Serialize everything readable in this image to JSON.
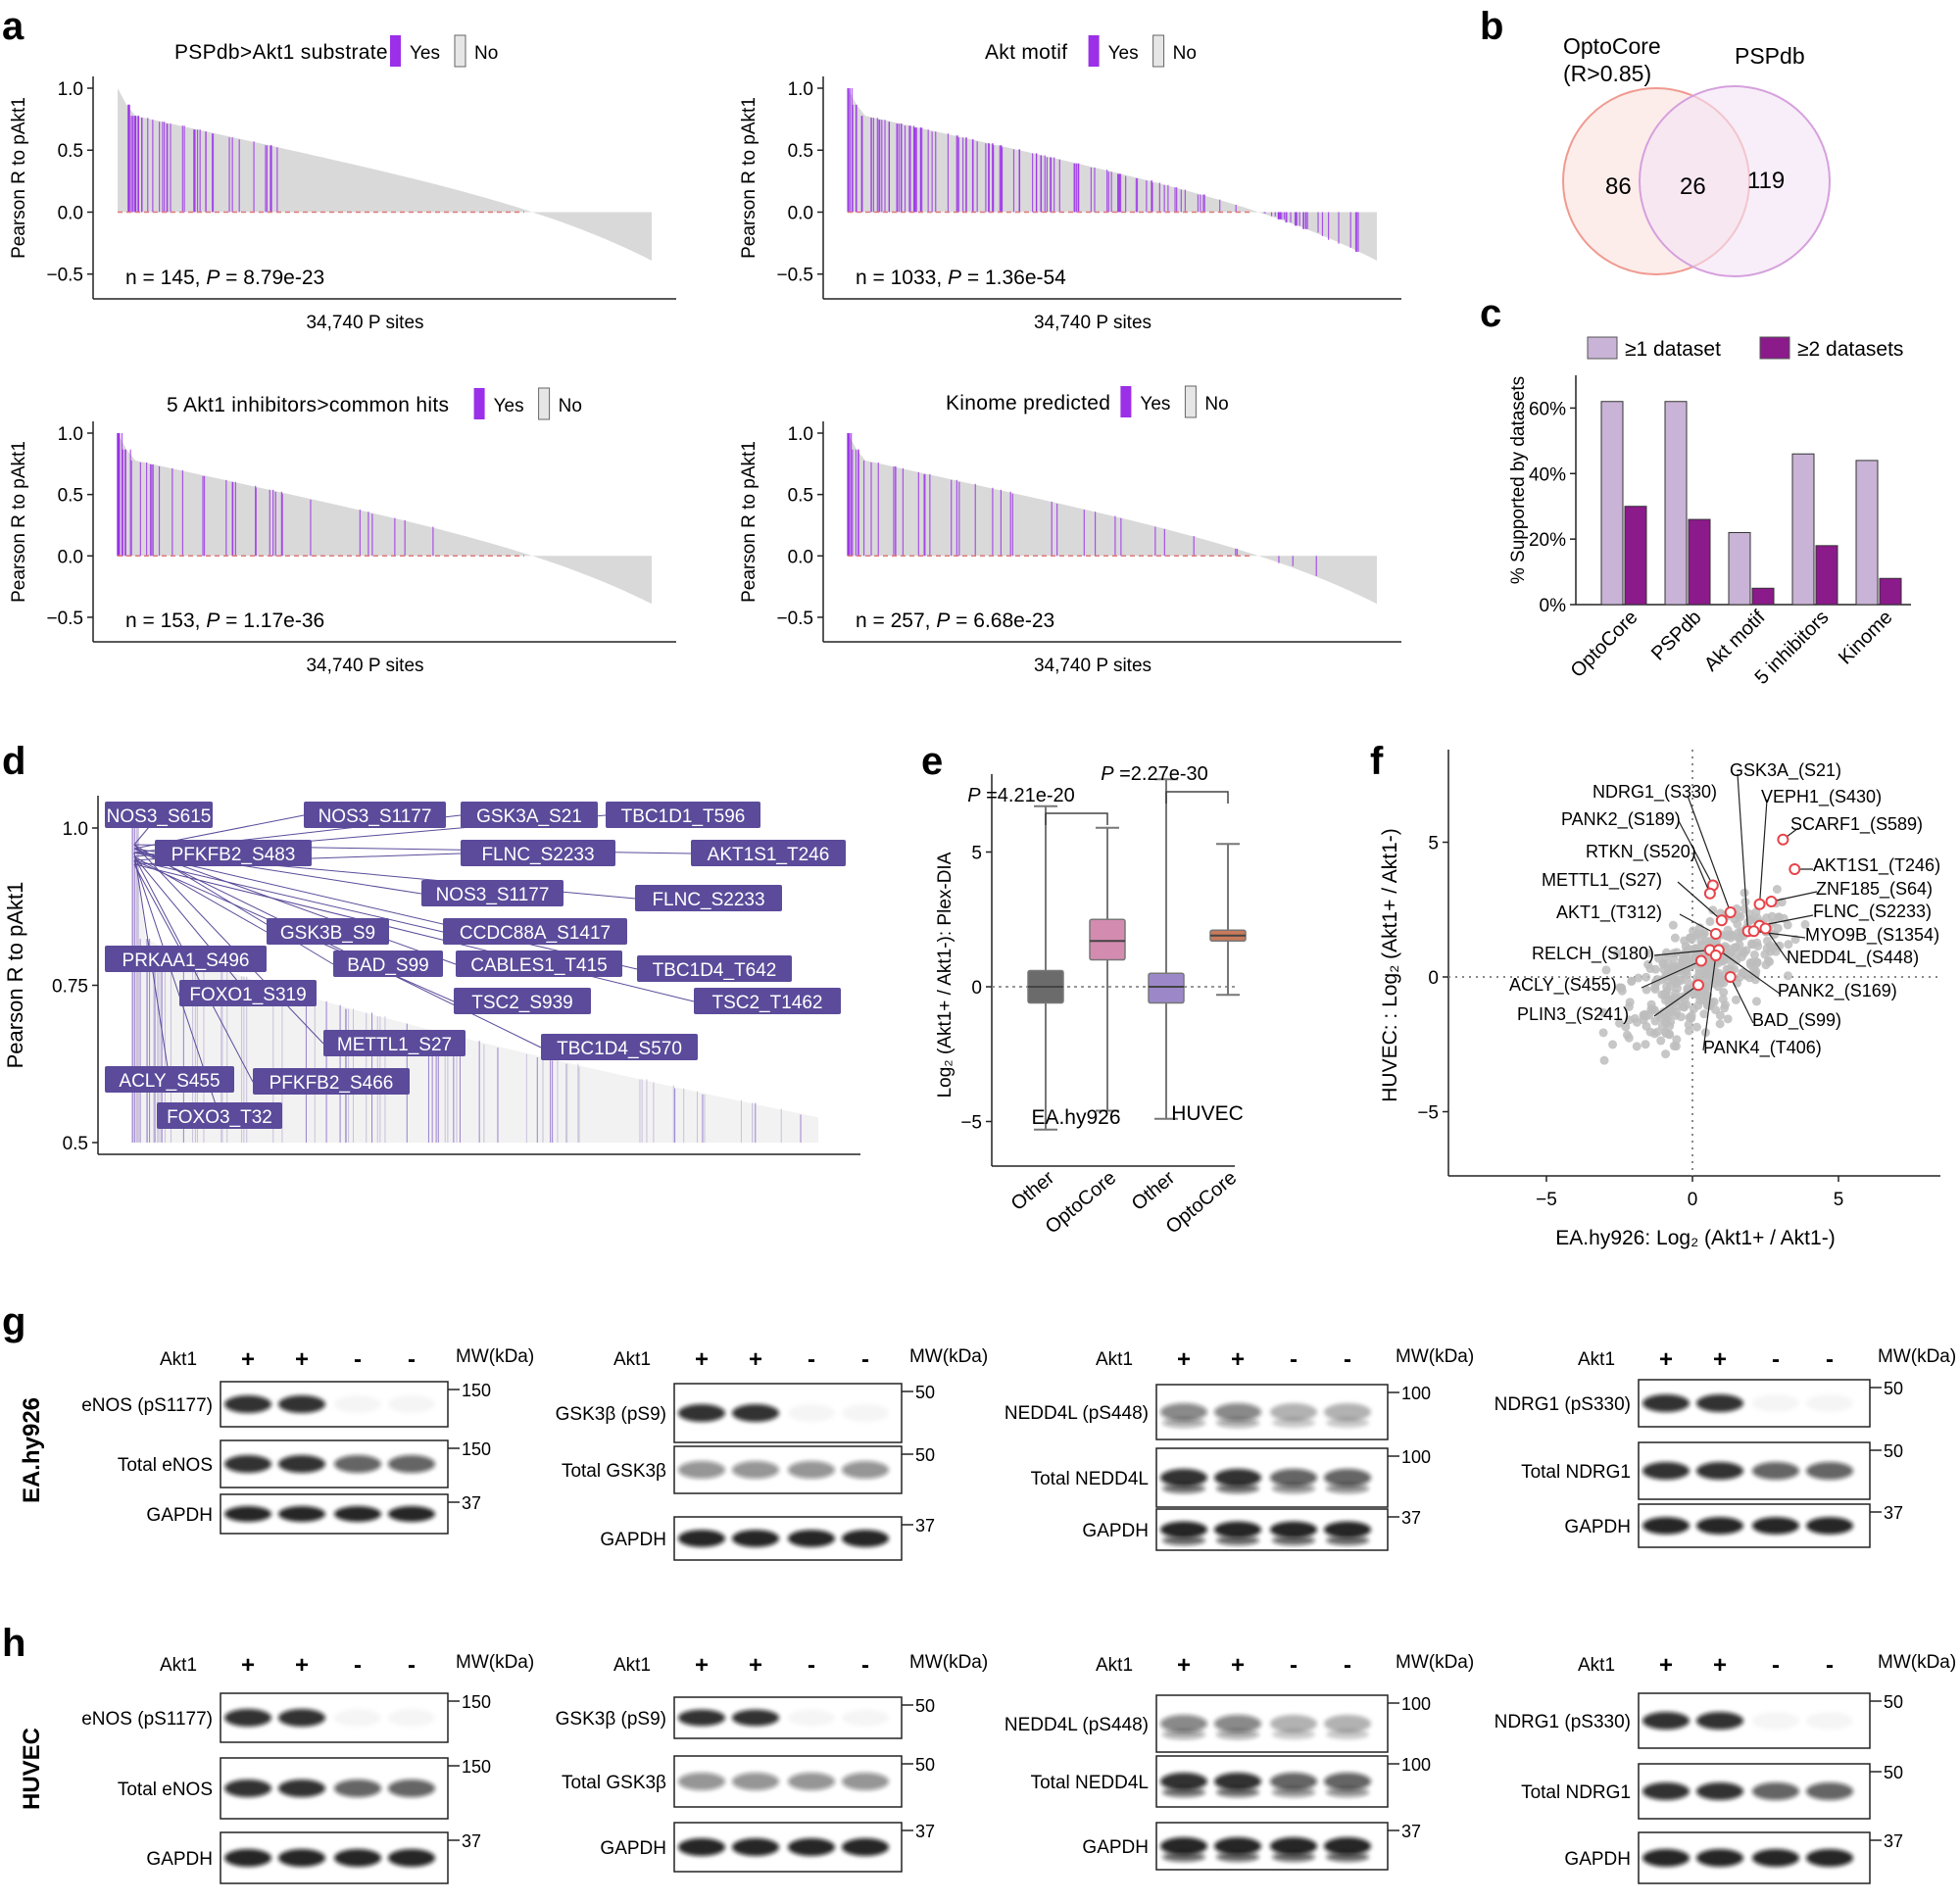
{
  "panel_letters": [
    "a",
    "b",
    "c",
    "d",
    "e",
    "f",
    "g",
    "h"
  ],
  "colors": {
    "yes": "#9b30e8",
    "no": "#d9d9d9",
    "ref_line": "#e07a7a",
    "opto": "#f08c8c",
    "pspdb": "#d49be0",
    "c_light": "#c9b3d6",
    "c_dark": "#8b1a8b",
    "label_box": "#5b4b9a",
    "box_other": "#6b6b6b",
    "box_opto_ea": "#d48bb0",
    "box_opto_huvec": "#c97a5a",
    "scatter_grey": "#bdbdbd",
    "scatter_red": "#e8434a"
  },
  "panel_a": {
    "charts": [
      {
        "title": "PSPdb>Akt1 substrate",
        "stat_n": "n = 145, ",
        "stat_p": " = 8.79e-23",
        "mark_fraction": [
          0.02,
          0.35
        ]
      },
      {
        "title": "Akt motif",
        "stat_n": "n = 1033, ",
        "stat_p": " = 1.36e-54",
        "mark_fraction": [
          0.0,
          0.97
        ]
      },
      {
        "title": "5 Akt1 inhibitors>common hits",
        "stat_n": "n = 153, ",
        "stat_p": " = 1.17e-36",
        "mark_fraction": [
          0.0,
          0.6
        ]
      },
      {
        "title": "Kinome predicted",
        "stat_n": "n = 257, ",
        "stat_p": " = 6.68e-23",
        "mark_fraction": [
          0.0,
          0.9
        ]
      }
    ],
    "ylabel": "Pearson R to pAkt1",
    "xlabel": "34,740 P sites",
    "legend_yes": "Yes",
    "legend_no": "No",
    "p_symbol": "P",
    "yticks": [
      "1.0",
      "0.5",
      "0.0",
      "−0.5"
    ]
  },
  "panel_b": {
    "label1": "OptoCore",
    "label1b": "(R>0.85)",
    "label2": "PSPdb",
    "only_opto": "86",
    "overlap": "26",
    "only_pspdb": "119"
  },
  "chart_data": [
    {
      "type": "bar",
      "title": "",
      "ylabel": "% Supported by datasets",
      "categories": [
        "OptoCore",
        "PSPdb",
        "Akt motif",
        "5 inhibitors",
        "Kinome"
      ],
      "series": [
        {
          "name": "≥1 dataset",
          "values": [
            62,
            62,
            22,
            46,
            44
          ]
        },
        {
          "name": "≥2 datasets",
          "values": [
            30,
            26,
            5,
            18,
            8
          ]
        }
      ],
      "ylim": [
        0,
        70
      ],
      "yticks": [
        "0%",
        "20%",
        "40%",
        "60%"
      ],
      "legend": "top"
    },
    {
      "type": "box",
      "ylabel": "Log₂ (Akt1+ / Akt1-): Plex-DIA",
      "categories": [
        "Other",
        "OptoCore",
        "Other",
        "OptoCore"
      ],
      "groups": [
        "EA.hy926",
        "HUVEC"
      ],
      "boxes": [
        {
          "min": -5.3,
          "q1": -0.6,
          "median": 0,
          "q3": 0.6,
          "max": 6.7
        },
        {
          "min": -4.6,
          "q1": 1.0,
          "median": 1.7,
          "q3": 2.5,
          "max": 5.9
        },
        {
          "min": -4.9,
          "q1": -0.6,
          "median": 0,
          "q3": 0.5,
          "max": 7.7
        },
        {
          "min": -0.3,
          "q1": 1.7,
          "median": 1.9,
          "q3": 2.1,
          "max": 5.3
        }
      ],
      "p_values": [
        "=4.21e-20",
        "=2.27e-30"
      ],
      "yticks": [
        "5",
        "0",
        "−5"
      ],
      "ylim": [
        -7,
        8
      ]
    },
    {
      "type": "scatter",
      "xlabel": "EA.hy926: Log₂ (Akt1+ / Akt1-)",
      "ylabel": "HUVEC: : Log₂ (Akt1+ / Akt1-)",
      "xlim": [
        -8.5,
        8.5
      ],
      "ylim": [
        -8.5,
        8.5
      ],
      "xticks": [
        "−5",
        "0",
        "5"
      ],
      "yticks": [
        "5",
        "0",
        "−5"
      ],
      "highlighted": [
        {
          "label": "GSK3A_(S21)",
          "x": 1.9,
          "y": 1.7
        },
        {
          "label": "NDRG1_(S330)",
          "x": 1.3,
          "y": 2.4
        },
        {
          "label": "VEPH1_(S430)",
          "x": 2.3,
          "y": 2.7
        },
        {
          "label": "PANK2_(S189)",
          "x": 0.7,
          "y": 3.4
        },
        {
          "label": "SCARF1_(S589)",
          "x": 3.1,
          "y": 5.1
        },
        {
          "label": "RTKN_(S520)",
          "x": 0.6,
          "y": 3.1
        },
        {
          "label": "AKT1S1_(T246)",
          "x": 3.5,
          "y": 4.0
        },
        {
          "label": "METTL1_(S27)",
          "x": 1.0,
          "y": 2.1
        },
        {
          "label": "ZNF185_(S64)",
          "x": 2.7,
          "y": 2.8
        },
        {
          "label": "AKT1_(T312)",
          "x": 0.8,
          "y": 1.6
        },
        {
          "label": "FLNC_(S2233)",
          "x": 2.3,
          "y": 1.9
        },
        {
          "label": "MYO9B_(S1354)",
          "x": 2.1,
          "y": 1.7
        },
        {
          "label": "NEDD4L_(S448)",
          "x": 2.5,
          "y": 1.8
        },
        {
          "label": "RELCH_(S180)",
          "x": 0.6,
          "y": 1.0
        },
        {
          "label": "PANK2_(S169)",
          "x": 0.9,
          "y": 1.0
        },
        {
          "label": "ACLY_(S455)",
          "x": 0.3,
          "y": 0.6
        },
        {
          "label": "BAD_(S99)",
          "x": 1.3,
          "y": 0.0
        },
        {
          "label": "PLIN3_(S241)",
          "x": 0.2,
          "y": -0.3
        },
        {
          "label": "PANK4_(T406)",
          "x": 0.8,
          "y": 0.8
        }
      ]
    }
  ],
  "panel_d": {
    "ylabel": "Pearson R to pAkt1",
    "yticks": [
      "1.0",
      "0.75",
      "0.5"
    ],
    "labels": [
      "NOS3_S615",
      "NOS3_S1177",
      "GSK3A_S21",
      "TBC1D1_T596",
      "PFKFB2_S483",
      "FLNC_S2233",
      "AKT1S1_T246",
      "NOS3_S1177",
      "FLNC_S2233",
      "GSK3B_S9",
      "CCDC88A_S1417",
      "PRKAA1_S496",
      "BAD_S99",
      "CABLES1_T415",
      "TBC1D4_T642",
      "FOXO1_S319",
      "TSC2_S939",
      "TSC2_T1462",
      "METTL1_S27",
      "TBC1D4_S570",
      "ACLY_S455",
      "PFKFB2_S466",
      "FOXO3_T32"
    ]
  },
  "panel_e": {
    "group1": "EA.hy926",
    "group2": "HUVEC",
    "p_symbol": "P"
  },
  "blots": {
    "g_side": "EA.hy926",
    "h_side": "HUVEC",
    "akt1": "Akt1",
    "mw": "MW(kDa)",
    "plus": "+",
    "minus": "-",
    "columns": [
      {
        "rows": [
          "eNOS (pS1177)",
          "Total eNOS",
          "GAPDH"
        ],
        "mw": [
          "150",
          "150",
          "37"
        ]
      },
      {
        "rows": [
          "GSK3β (pS9)",
          "Total GSK3β",
          "GAPDH"
        ],
        "mw": [
          "50",
          "50",
          "37"
        ]
      },
      {
        "rows": [
          "NEDD4L (pS448)",
          "Total NEDD4L",
          "GAPDH"
        ],
        "mw": [
          "100",
          "100",
          "37"
        ]
      },
      {
        "rows": [
          "NDRG1 (pS330)",
          "Total NDRG1",
          "GAPDH"
        ],
        "mw": [
          "50",
          "50",
          "37"
        ]
      }
    ]
  }
}
